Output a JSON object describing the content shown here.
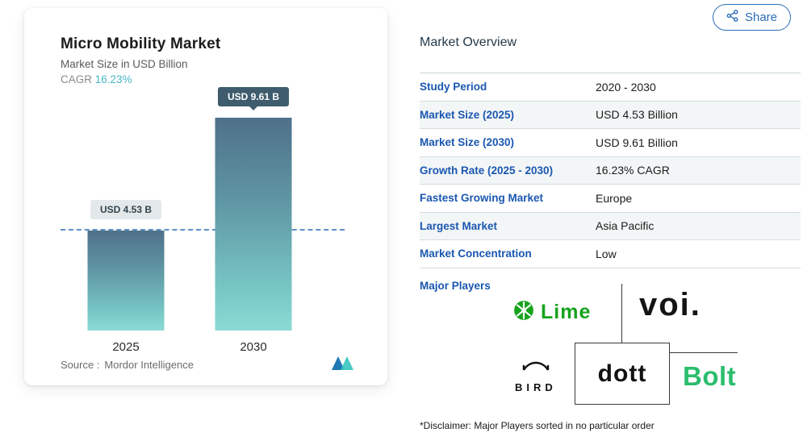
{
  "share": {
    "label": "Share"
  },
  "chart_card": {
    "title": "Micro Mobility Market",
    "subtitle": "Market Size in USD Billion",
    "cagr_label": "CAGR",
    "cagr_value": "16.23%",
    "source_label": "Source :",
    "source_value": "Mordor Intelligence"
  },
  "chart_data": {
    "type": "bar",
    "title": "Micro Mobility Market",
    "ylabel": "Market Size in USD Billion",
    "categories": [
      "2025",
      "2030"
    ],
    "values": [
      4.53,
      9.61
    ],
    "value_labels": [
      "USD 4.53 B",
      "USD 9.61 B"
    ],
    "ylim": [
      0,
      10.5
    ],
    "reference_line": 4.53,
    "grid": false,
    "legend": "none"
  },
  "overview": {
    "heading": "Market Overview",
    "rows": [
      {
        "label": "Study Period",
        "value": "2020 - 2030"
      },
      {
        "label": "Market Size (2025)",
        "value": "USD 4.53 Billion"
      },
      {
        "label": "Market Size (2030)",
        "value": "USD 9.61 Billion"
      },
      {
        "label": "Growth Rate (2025 - 2030)",
        "value": "16.23% CAGR"
      },
      {
        "label": "Fastest Growing Market",
        "value": "Europe"
      },
      {
        "label": "Largest Market",
        "value": "Asia Pacific"
      },
      {
        "label": "Market Concentration",
        "value": "Low"
      }
    ],
    "major_players_label": "Major Players",
    "players": [
      "Lime",
      "voi.",
      "BIRD",
      "dott",
      "Bolt"
    ],
    "disclaimer": "*Disclaimer: Major Players sorted in no particular order"
  },
  "colors": {
    "label_blue": "#1a57b0",
    "cagr_teal": "#49b6c8",
    "bar_gradient_top": "#4f7089",
    "bar_gradient_bottom": "#8bdad5",
    "badge_dark": "#3e5c6d",
    "badge_light": "#e3e9ea",
    "lime_green": "#16a31c",
    "bolt_green": "#2bbd6d",
    "share_blue": "#2a6db5"
  }
}
